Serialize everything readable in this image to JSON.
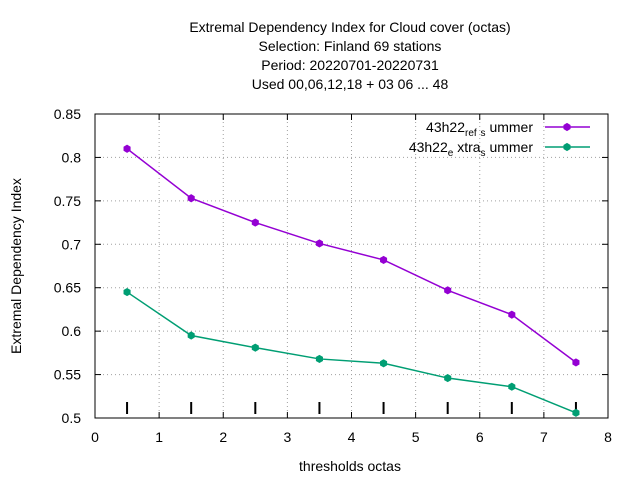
{
  "chart_data": {
    "type": "line",
    "title_lines": [
      "Extremal Dependency Index  for Cloud cover (octas)",
      "Selection: Finland     69 stations",
      "Period: 20220701-20220731",
      "Used  00,06,12,18  + 03 06 ... 48"
    ],
    "xlabel": "thresholds octas",
    "ylabel": "Extremal Dependency Index",
    "xlim": [
      0,
      8
    ],
    "ylim": [
      0.5,
      0.85
    ],
    "xticks": [
      0,
      1,
      2,
      3,
      4,
      5,
      6,
      7,
      8
    ],
    "yticks": [
      0.5,
      0.55,
      0.6,
      0.65,
      0.7,
      0.75,
      0.8,
      0.85
    ],
    "xtick_labels": [
      "0",
      "1",
      "2",
      "3",
      "4",
      "5",
      "6",
      "7",
      "8"
    ],
    "ytick_labels": [
      "0.5",
      "0.55",
      "0.6",
      "0.65",
      "0.7",
      "0.75",
      "0.8",
      "0.85"
    ],
    "grid": true,
    "legend_position": "top-right",
    "x": [
      0.5,
      1.5,
      2.5,
      3.5,
      4.5,
      5.5,
      6.5,
      7.5
    ],
    "series": [
      {
        "name": "43h22_ref_summer",
        "legend_parts": [
          {
            "t": "43h22",
            "sub": false
          },
          {
            "t": "ref",
            "sub": true
          },
          {
            "t": "s",
            "sub": true
          },
          {
            "t": "ummer",
            "sub": false
          }
        ],
        "color": "#9400d3",
        "values": [
          0.81,
          0.753,
          0.725,
          0.701,
          0.682,
          0.647,
          0.619,
          0.564
        ]
      },
      {
        "name": "43h22_extra_summer",
        "legend_parts": [
          {
            "t": "43h22",
            "sub": false
          },
          {
            "t": "e",
            "sub": true
          },
          {
            "t": "xtra",
            "sub": false
          },
          {
            "t": "s",
            "sub": true
          },
          {
            "t": "ummer",
            "sub": false
          }
        ],
        "color": "#009e73",
        "values": [
          0.645,
          0.595,
          0.581,
          0.568,
          0.563,
          0.546,
          0.536,
          0.506
        ]
      }
    ],
    "sample_markers_x": [
      0.5,
      1.5,
      2.5,
      3.5,
      4.5,
      5.5,
      6.5,
      7.5
    ]
  }
}
